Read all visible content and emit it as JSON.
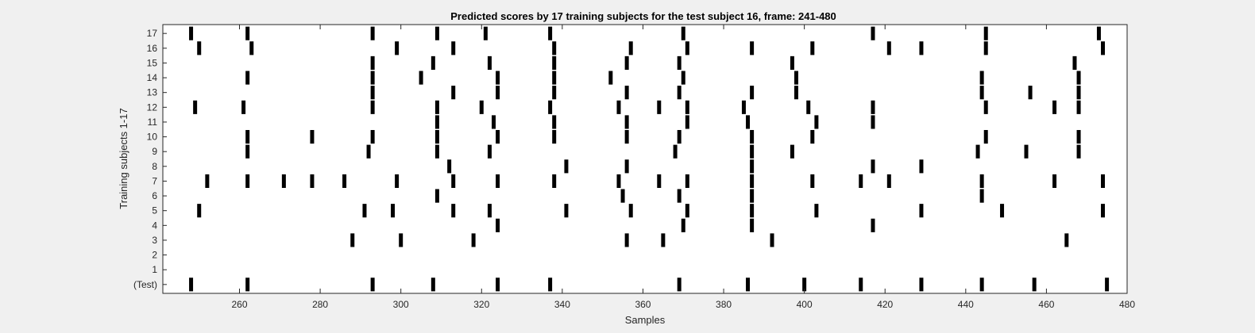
{
  "chart_data": {
    "type": "raster",
    "title": "Predicted scores by 17 training subjects for the test subject 16, frame: 241-480",
    "xlabel": "Samples",
    "ylabel": "Training subjects 1-17",
    "xlim": [
      241,
      480
    ],
    "xticks": [
      260,
      280,
      300,
      320,
      340,
      360,
      380,
      400,
      420,
      440,
      460,
      480
    ],
    "row_labels": [
      "(Test)",
      "1",
      "2",
      "3",
      "4",
      "5",
      "6",
      "7",
      "8",
      "9",
      "10",
      "11",
      "12",
      "13",
      "14",
      "15",
      "16",
      "17"
    ],
    "rows": [
      {
        "label": "(Test)",
        "events": [
          248,
          262,
          293,
          308,
          324,
          337,
          369,
          386,
          400,
          414,
          429,
          444,
          457,
          475
        ]
      },
      {
        "label": "1",
        "events": []
      },
      {
        "label": "2",
        "events": []
      },
      {
        "label": "3",
        "events": [
          288,
          300,
          318,
          356,
          365,
          392,
          465
        ]
      },
      {
        "label": "4",
        "events": [
          324,
          370,
          387,
          417
        ]
      },
      {
        "label": "5",
        "events": [
          250,
          291,
          298,
          313,
          322,
          341,
          357,
          371,
          387,
          403,
          429,
          449,
          474
        ]
      },
      {
        "label": "6",
        "events": [
          309,
          355,
          369,
          387,
          444
        ]
      },
      {
        "label": "7",
        "events": [
          252,
          262,
          271,
          278,
          286,
          299,
          313,
          324,
          338,
          354,
          364,
          371,
          387,
          402,
          414,
          421,
          444,
          462,
          474
        ]
      },
      {
        "label": "8",
        "events": [
          312,
          341,
          356,
          387,
          417,
          429
        ]
      },
      {
        "label": "9",
        "events": [
          262,
          292,
          309,
          322,
          368,
          387,
          397,
          443,
          455,
          468
        ]
      },
      {
        "label": "10",
        "events": [
          262,
          278,
          293,
          309,
          324,
          338,
          356,
          369,
          387,
          402,
          445,
          468
        ]
      },
      {
        "label": "11",
        "events": [
          309,
          323,
          338,
          356,
          371,
          386,
          403,
          417
        ]
      },
      {
        "label": "12",
        "events": [
          249,
          261,
          293,
          309,
          320,
          337,
          354,
          364,
          371,
          385,
          401,
          417,
          445,
          462,
          468
        ]
      },
      {
        "label": "13",
        "events": [
          293,
          313,
          324,
          338,
          356,
          369,
          387,
          398,
          444,
          456,
          468
        ]
      },
      {
        "label": "14",
        "events": [
          262,
          293,
          305,
          324,
          338,
          352,
          370,
          398,
          444,
          468
        ]
      },
      {
        "label": "15",
        "events": [
          293,
          308,
          322,
          338,
          356,
          369,
          397,
          467
        ]
      },
      {
        "label": "16",
        "events": [
          250,
          263,
          299,
          313,
          338,
          357,
          371,
          387,
          402,
          421,
          429,
          445,
          474
        ]
      },
      {
        "label": "17",
        "events": [
          248,
          262,
          293,
          309,
          321,
          337,
          370,
          417,
          445,
          473
        ]
      }
    ],
    "colors": {
      "event": "#000000",
      "axes_bg": "#ffffff",
      "figure_bg": "#f0f0f0"
    },
    "grid": false,
    "legend": "none"
  }
}
